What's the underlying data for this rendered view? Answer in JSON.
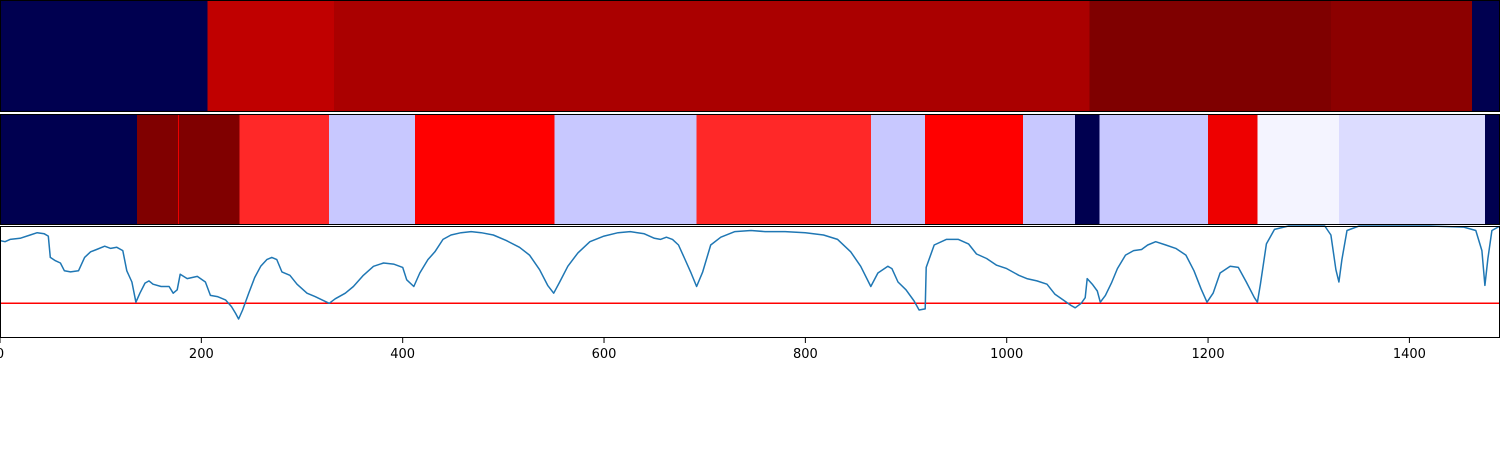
{
  "chart_data": [
    {
      "type": "heatmap",
      "colormap": "seismic",
      "xlim": [
        0,
        1490
      ],
      "segments": [
        {
          "start": 0,
          "end": 206,
          "color": "#000050"
        },
        {
          "start": 206,
          "end": 332,
          "color": "#c00000"
        },
        {
          "start": 332,
          "end": 1082,
          "color": "#aa0000"
        },
        {
          "start": 1082,
          "end": 1322,
          "color": "#7f0000"
        },
        {
          "start": 1322,
          "end": 1462,
          "color": "#8c0000"
        },
        {
          "start": 1462,
          "end": 1490,
          "color": "#000050"
        }
      ]
    },
    {
      "type": "heatmap",
      "colormap": "seismic",
      "xlim": [
        0,
        1490
      ],
      "segments": [
        {
          "start": 0,
          "end": 136,
          "color": "#000050"
        },
        {
          "start": 136,
          "end": 177,
          "color": "#800000"
        },
        {
          "start": 177,
          "end": 178,
          "color": "#ee0000"
        },
        {
          "start": 178,
          "end": 238,
          "color": "#800000"
        },
        {
          "start": 238,
          "end": 327,
          "color": "#ff2828"
        },
        {
          "start": 327,
          "end": 412,
          "color": "#c8c8ff"
        },
        {
          "start": 412,
          "end": 551,
          "color": "#ff0000"
        },
        {
          "start": 551,
          "end": 692,
          "color": "#c8c8ff"
        },
        {
          "start": 692,
          "end": 865,
          "color": "#ff2828"
        },
        {
          "start": 865,
          "end": 919,
          "color": "#c8c8ff"
        },
        {
          "start": 919,
          "end": 1016,
          "color": "#ff0000"
        },
        {
          "start": 1016,
          "end": 1068,
          "color": "#c8c8ff"
        },
        {
          "start": 1068,
          "end": 1092,
          "color": "#000050"
        },
        {
          "start": 1092,
          "end": 1200,
          "color": "#c8c8ff"
        },
        {
          "start": 1200,
          "end": 1249,
          "color": "#ee0000"
        },
        {
          "start": 1249,
          "end": 1330,
          "color": "#f4f4ff"
        },
        {
          "start": 1330,
          "end": 1475,
          "color": "#dcdcff"
        },
        {
          "start": 1475,
          "end": 1490,
          "color": "#000050"
        }
      ]
    },
    {
      "type": "line",
      "xlim": [
        0,
        1490
      ],
      "ylim": [
        0,
        1
      ],
      "xticks": [
        0,
        200,
        400,
        600,
        800,
        1000,
        1200,
        1400
      ],
      "threshold": {
        "y": 0.31,
        "color": "#ff0000"
      },
      "series": [
        {
          "color": "#1f77b4",
          "points": [
            [
              0,
              0.87
            ],
            [
              5,
              0.86
            ],
            [
              10,
              0.88
            ],
            [
              20,
              0.89
            ],
            [
              30,
              0.92
            ],
            [
              37,
              0.94
            ],
            [
              44,
              0.93
            ],
            [
              48,
              0.91
            ],
            [
              50,
              0.72
            ],
            [
              55,
              0.69
            ],
            [
              60,
              0.67
            ],
            [
              64,
              0.6
            ],
            [
              70,
              0.59
            ],
            [
              78,
              0.6
            ],
            [
              84,
              0.72
            ],
            [
              90,
              0.77
            ],
            [
              96,
              0.79
            ],
            [
              104,
              0.82
            ],
            [
              110,
              0.8
            ],
            [
              116,
              0.81
            ],
            [
              122,
              0.78
            ],
            [
              126,
              0.6
            ],
            [
              131,
              0.5
            ],
            [
              135,
              0.32
            ],
            [
              139,
              0.4
            ],
            [
              144,
              0.49
            ],
            [
              148,
              0.51
            ],
            [
              152,
              0.48
            ],
            [
              160,
              0.46
            ],
            [
              168,
              0.46
            ],
            [
              172,
              0.4
            ],
            [
              176,
              0.43
            ],
            [
              179,
              0.57
            ],
            [
              186,
              0.53
            ],
            [
              196,
              0.55
            ],
            [
              204,
              0.5
            ],
            [
              209,
              0.38
            ],
            [
              216,
              0.37
            ],
            [
              224,
              0.34
            ],
            [
              230,
              0.28
            ],
            [
              234,
              0.22
            ],
            [
              237,
              0.17
            ],
            [
              241,
              0.25
            ],
            [
              247,
              0.4
            ],
            [
              253,
              0.54
            ],
            [
              259,
              0.64
            ],
            [
              265,
              0.7
            ],
            [
              270,
              0.72
            ],
            [
              275,
              0.7
            ],
            [
              280,
              0.59
            ],
            [
              288,
              0.56
            ],
            [
              295,
              0.48
            ],
            [
              305,
              0.4
            ],
            [
              313,
              0.37
            ],
            [
              320,
              0.34
            ],
            [
              327,
              0.31
            ],
            [
              333,
              0.35
            ],
            [
              343,
              0.4
            ],
            [
              351,
              0.46
            ],
            [
              361,
              0.56
            ],
            [
              371,
              0.64
            ],
            [
              381,
              0.67
            ],
            [
              391,
              0.66
            ],
            [
              400,
              0.63
            ],
            [
              404,
              0.52
            ],
            [
              411,
              0.46
            ],
            [
              417,
              0.58
            ],
            [
              425,
              0.7
            ],
            [
              432,
              0.77
            ],
            [
              440,
              0.88
            ],
            [
              448,
              0.92
            ],
            [
              458,
              0.94
            ],
            [
              468,
              0.95
            ],
            [
              478,
              0.94
            ],
            [
              490,
              0.92
            ],
            [
              503,
              0.87
            ],
            [
              516,
              0.81
            ],
            [
              526,
              0.74
            ],
            [
              536,
              0.61
            ],
            [
              544,
              0.47
            ],
            [
              550,
              0.4
            ],
            [
              556,
              0.5
            ],
            [
              564,
              0.64
            ],
            [
              574,
              0.76
            ],
            [
              586,
              0.86
            ],
            [
              600,
              0.91
            ],
            [
              614,
              0.94
            ],
            [
              626,
              0.95
            ],
            [
              640,
              0.93
            ],
            [
              650,
              0.89
            ],
            [
              656,
              0.88
            ],
            [
              662,
              0.9
            ],
            [
              668,
              0.88
            ],
            [
              674,
              0.83
            ],
            [
              680,
              0.71
            ],
            [
              686,
              0.59
            ],
            [
              692,
              0.46
            ],
            [
              698,
              0.59
            ],
            [
              706,
              0.83
            ],
            [
              716,
              0.9
            ],
            [
              730,
              0.95
            ],
            [
              746,
              0.96
            ],
            [
              760,
              0.95
            ],
            [
              780,
              0.95
            ],
            [
              800,
              0.94
            ],
            [
              818,
              0.92
            ],
            [
              832,
              0.88
            ],
            [
              845,
              0.77
            ],
            [
              855,
              0.64
            ],
            [
              865,
              0.46
            ],
            [
              872,
              0.58
            ],
            [
              882,
              0.64
            ],
            [
              886,
              0.62
            ],
            [
              892,
              0.5
            ],
            [
              900,
              0.43
            ],
            [
              908,
              0.33
            ],
            [
              913,
              0.25
            ],
            [
              919,
              0.26
            ],
            [
              920,
              0.63
            ],
            [
              928,
              0.83
            ],
            [
              940,
              0.88
            ],
            [
              952,
              0.88
            ],
            [
              962,
              0.84
            ],
            [
              970,
              0.75
            ],
            [
              980,
              0.71
            ],
            [
              990,
              0.65
            ],
            [
              1000,
              0.62
            ],
            [
              1012,
              0.56
            ],
            [
              1020,
              0.53
            ],
            [
              1030,
              0.51
            ],
            [
              1040,
              0.48
            ],
            [
              1048,
              0.39
            ],
            [
              1056,
              0.34
            ],
            [
              1064,
              0.29
            ],
            [
              1068,
              0.27
            ],
            [
              1074,
              0.31
            ],
            [
              1078,
              0.36
            ],
            [
              1080,
              0.53
            ],
            [
              1085,
              0.48
            ],
            [
              1090,
              0.42
            ],
            [
              1093,
              0.32
            ],
            [
              1098,
              0.38
            ],
            [
              1104,
              0.49
            ],
            [
              1110,
              0.62
            ],
            [
              1118,
              0.74
            ],
            [
              1126,
              0.78
            ],
            [
              1134,
              0.79
            ],
            [
              1140,
              0.83
            ],
            [
              1148,
              0.86
            ],
            [
              1158,
              0.83
            ],
            [
              1168,
              0.8
            ],
            [
              1178,
              0.74
            ],
            [
              1186,
              0.6
            ],
            [
              1193,
              0.44
            ],
            [
              1199,
              0.32
            ],
            [
              1205,
              0.4
            ],
            [
              1212,
              0.58
            ],
            [
              1222,
              0.64
            ],
            [
              1230,
              0.63
            ],
            [
              1238,
              0.5
            ],
            [
              1246,
              0.36
            ],
            [
              1249,
              0.32
            ],
            [
              1252,
              0.48
            ],
            [
              1258,
              0.84
            ],
            [
              1266,
              0.97
            ],
            [
              1280,
              1.0
            ],
            [
              1300,
              1.0
            ],
            [
              1316,
              1.0
            ],
            [
              1322,
              0.92
            ],
            [
              1327,
              0.61
            ],
            [
              1330,
              0.5
            ],
            [
              1333,
              0.7
            ],
            [
              1338,
              0.96
            ],
            [
              1350,
              1.0
            ],
            [
              1380,
              1.0
            ],
            [
              1420,
              1.0
            ],
            [
              1454,
              0.99
            ],
            [
              1466,
              0.96
            ],
            [
              1472,
              0.78
            ],
            [
              1475,
              0.47
            ],
            [
              1478,
              0.71
            ],
            [
              1482,
              0.96
            ],
            [
              1490,
              1.0
            ]
          ]
        }
      ]
    }
  ]
}
